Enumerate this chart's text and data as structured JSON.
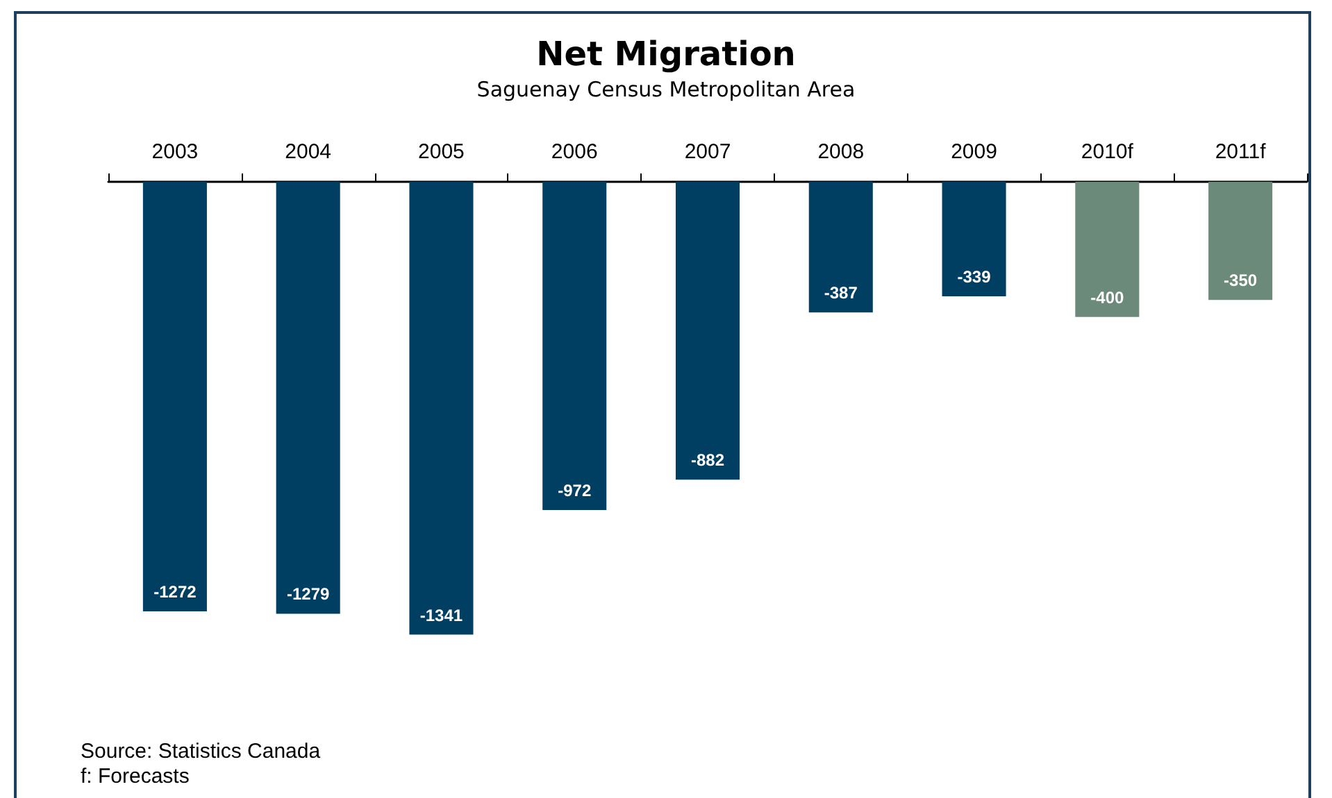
{
  "chart_data": {
    "type": "bar",
    "title": "Net Migration",
    "subtitle": "Saguenay Census Metropolitan Area",
    "categories": [
      "2003",
      "2004",
      "2005",
      "2006",
      "2007",
      "2008",
      "2009",
      "2010f",
      "2011f"
    ],
    "values": [
      -1272,
      -1279,
      -1341,
      -972,
      -882,
      -387,
      -339,
      -400,
      -350
    ],
    "colors": [
      "#003f62",
      "#003f62",
      "#003f62",
      "#003f62",
      "#003f62",
      "#003f62",
      "#003f62",
      "#6b8a7a",
      "#6b8a7a"
    ],
    "data_labels": true,
    "annotations": [
      "Source: Statistics Canada",
      "f: Forecasts"
    ]
  }
}
